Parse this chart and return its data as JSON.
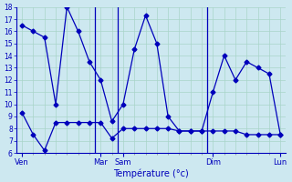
{
  "title": "Température (°c)",
  "bg_color": "#cde8f0",
  "grid_color": "#a8d4c8",
  "line_color": "#0000bb",
  "x_major_labels": [
    "Ven",
    "Mar",
    "Sam",
    "Dim",
    "Lun"
  ],
  "x_major_positions": [
    0,
    7,
    9,
    17,
    23
  ],
  "max_temps": [
    16.5,
    16.0,
    15.5,
    10.0,
    18.0,
    16.0,
    13.5,
    12.0,
    8.6,
    10.0,
    14.5,
    17.3,
    15.0,
    9.0,
    7.8,
    7.8,
    7.8,
    11.0,
    14.0,
    12.0,
    13.5,
    13.0,
    12.5,
    7.5
  ],
  "min_temps": [
    9.3,
    7.5,
    6.2,
    8.5,
    8.5,
    8.5,
    8.5,
    8.5,
    7.2,
    8.0,
    8.0,
    8.0,
    8.0,
    8.0,
    7.8,
    7.8,
    7.8,
    7.8,
    7.8,
    7.8,
    7.5,
    7.5,
    7.5,
    7.5
  ],
  "ylim": [
    6,
    18
  ],
  "yticks": [
    6,
    7,
    8,
    9,
    10,
    11,
    12,
    13,
    14,
    15,
    16,
    17,
    18
  ],
  "n_points": 24,
  "fig_width": 3.2,
  "fig_height": 2.0,
  "dpi": 100
}
